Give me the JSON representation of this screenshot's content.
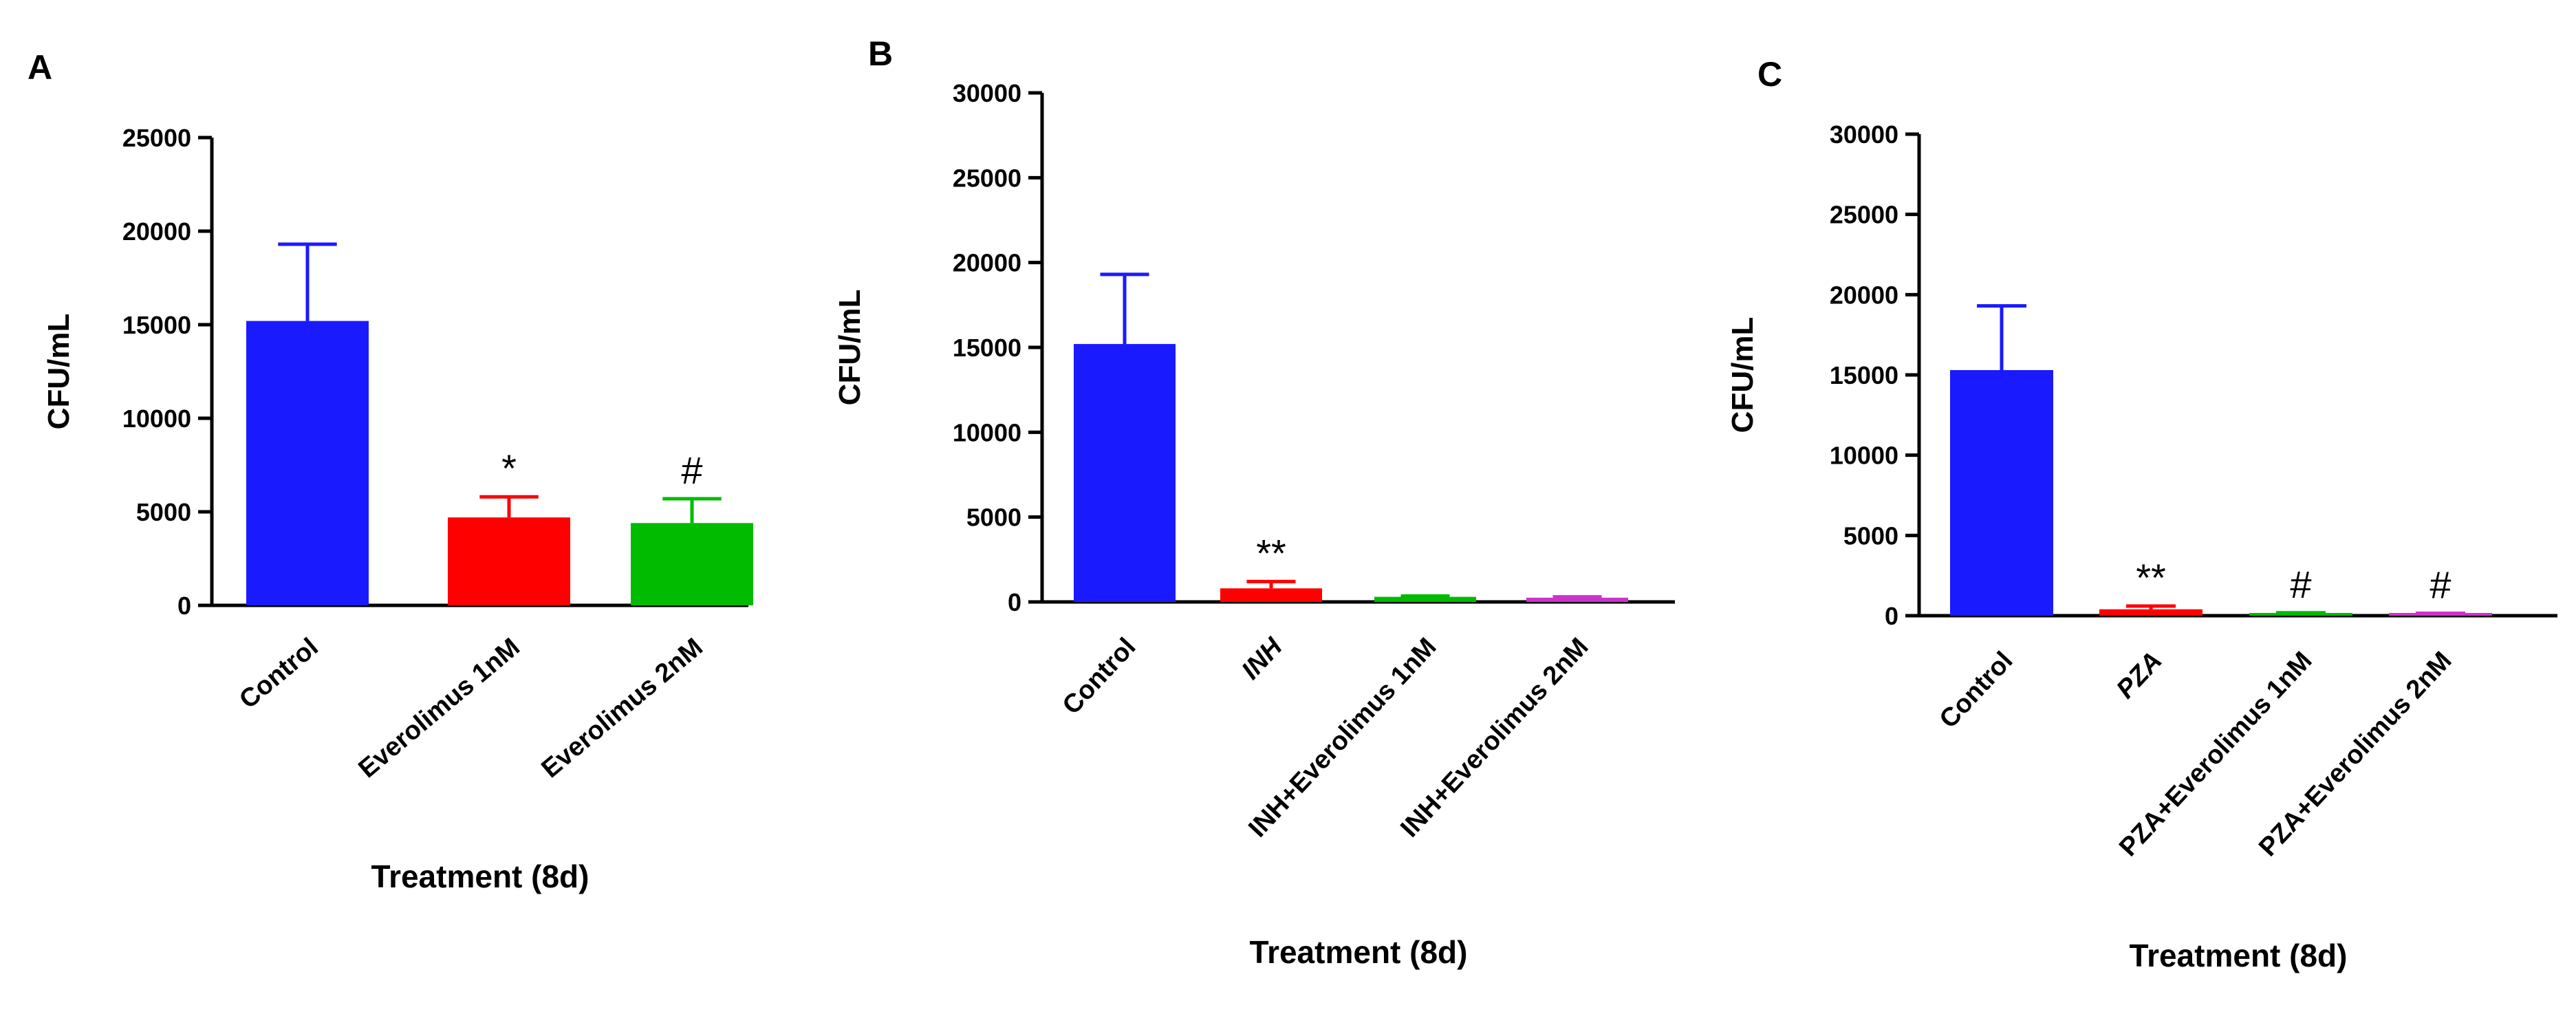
{
  "chart_data": [
    {
      "panel": "A",
      "type": "bar",
      "title": "",
      "ylabel": "CFU/mL",
      "xlabel": "Treatment (8d)",
      "ylim": [
        0,
        25000
      ],
      "yticks": [
        0,
        5000,
        10000,
        15000,
        20000,
        25000
      ],
      "categories": [
        "Control",
        "Everolimus 1nM",
        "Everolimus 2nM"
      ],
      "values": [
        15200,
        4700,
        4400
      ],
      "errors": [
        4100,
        1100,
        1300
      ],
      "colors": [
        "#1a1aff",
        "#ff0000",
        "#00bb00"
      ],
      "annotations": [
        "",
        "*",
        "#"
      ]
    },
    {
      "panel": "B",
      "type": "bar",
      "title": "",
      "ylabel": "CFU/mL",
      "xlabel": "Treatment (8d)",
      "ylim": [
        0,
        30000
      ],
      "yticks": [
        0,
        5000,
        10000,
        15000,
        20000,
        25000,
        30000
      ],
      "categories": [
        "Control",
        "INH",
        "INH+Everolimus 1nM",
        "INH+Everolimus 2nM"
      ],
      "values": [
        15200,
        800,
        300,
        250
      ],
      "errors": [
        4100,
        400,
        50,
        50
      ],
      "colors": [
        "#1a1aff",
        "#ff0000",
        "#00bb00",
        "#cc33cc"
      ],
      "annotations": [
        "",
        "**",
        "",
        ""
      ]
    },
    {
      "panel": "C",
      "type": "bar",
      "title": "",
      "ylabel": "CFU/mL",
      "xlabel": "Treatment (8d)",
      "ylim": [
        0,
        30000
      ],
      "yticks": [
        0,
        5000,
        10000,
        15000,
        20000,
        25000,
        30000
      ],
      "categories": [
        "Control",
        "PZA",
        "PZA+Everolimus 1nM",
        "PZA+Everolimus 2nM"
      ],
      "values": [
        15300,
        400,
        150,
        120
      ],
      "errors": [
        4000,
        200,
        30,
        30
      ],
      "colors": [
        "#1a1aff",
        "#ff0000",
        "#00bb00",
        "#cc33cc"
      ],
      "annotations": [
        "",
        "**",
        "#",
        "#"
      ]
    }
  ]
}
